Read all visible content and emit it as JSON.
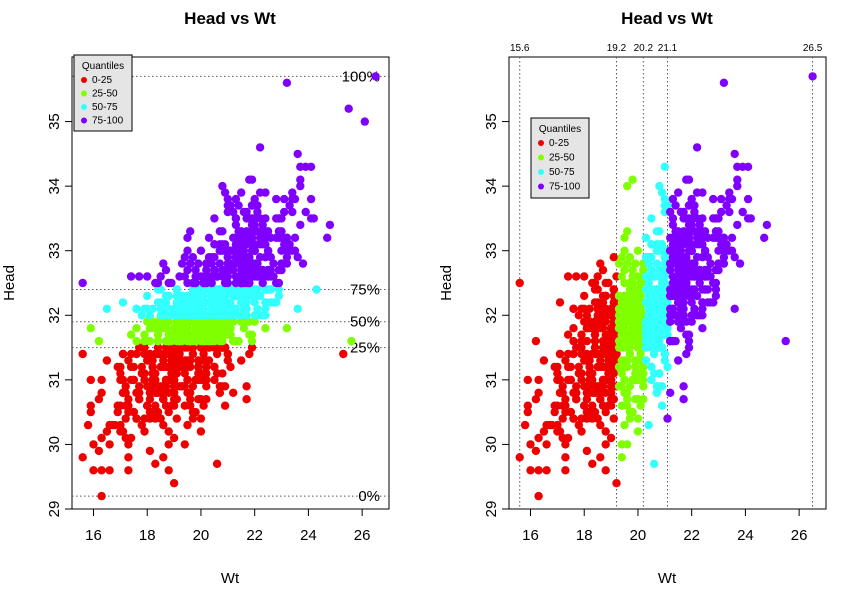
{
  "colors": {
    "q0_25": "#ee0000",
    "q25_50": "#80ff00",
    "q50_75": "#33ffff",
    "q75_100": "#7f00ff",
    "background": "#ffffff",
    "legend_bg": "#e5e5e5"
  },
  "chart_data": [
    {
      "type": "scatter",
      "title": "Head vs Wt",
      "xlabel": "Wt",
      "ylabel": "Head",
      "xlim": [
        15.2,
        27.0
      ],
      "ylim": [
        29.0,
        36.0
      ],
      "x_ticks": [
        "16",
        "18",
        "20",
        "22",
        "24",
        "26"
      ],
      "y_ticks": [
        "29",
        "30",
        "31",
        "32",
        "33",
        "34",
        "35"
      ],
      "legend": {
        "title": "Quantiles",
        "position": "top-left",
        "items": [
          "0-25",
          "25-50",
          "50-75",
          "75-100"
        ]
      },
      "quantile_axis": "Head",
      "quantile_lines": [
        {
          "label": "100%",
          "value": 35.7
        },
        {
          "label": "75%",
          "value": 32.4
        },
        {
          "label": "50%",
          "value": 31.9
        },
        {
          "label": "25%",
          "value": 31.5
        },
        {
          "label": "0%",
          "value": 29.2
        }
      ],
      "series": [
        {
          "name": "0-25",
          "color": "#ee0000",
          "y_range": [
            29.2,
            31.5
          ],
          "count": 250,
          "center": [
            19.0,
            30.9
          ],
          "extreme_points": [
            [
              16.3,
              29.2
            ],
            [
              19.0,
              29.4
            ],
            [
              20.6,
              29.7
            ],
            [
              25.3,
              31.4
            ],
            [
              15.6,
              31.4
            ]
          ]
        },
        {
          "name": "25-50",
          "color": "#80ff00",
          "y_range": [
            31.5,
            31.9
          ],
          "count": 250,
          "center": [
            19.8,
            31.7
          ],
          "extreme_points": [
            [
              25.6,
              31.6
            ],
            [
              23.2,
              31.8
            ],
            [
              15.9,
              31.8
            ]
          ]
        },
        {
          "name": "50-75",
          "color": "#33ffff",
          "y_range": [
            31.9,
            32.4
          ],
          "count": 250,
          "center": [
            20.2,
            32.15
          ],
          "extreme_points": [
            [
              24.3,
              32.4
            ],
            [
              16.5,
              32.1
            ]
          ]
        },
        {
          "name": "75-100",
          "color": "#7f00ff",
          "y_range": [
            32.4,
            35.7
          ],
          "count": 250,
          "center": [
            21.5,
            33.3
          ],
          "extreme_points": [
            [
              26.5,
              35.7
            ],
            [
              15.6,
              32.5
            ],
            [
              23.2,
              35.6
            ],
            [
              26.1,
              35.0
            ],
            [
              25.5,
              35.2
            ]
          ]
        }
      ]
    },
    {
      "type": "scatter",
      "title": "Head vs Wt",
      "xlabel": "Wt",
      "ylabel": "Head",
      "xlim": [
        15.2,
        27.0
      ],
      "ylim": [
        29.0,
        36.0
      ],
      "x_ticks": [
        "16",
        "18",
        "20",
        "22",
        "24",
        "26"
      ],
      "y_ticks": [
        "29",
        "30",
        "31",
        "32",
        "33",
        "34",
        "35"
      ],
      "legend": {
        "title": "Quantiles",
        "position": "top-left",
        "items": [
          "0-25",
          "25-50",
          "50-75",
          "75-100"
        ]
      },
      "quantile_axis": "Wt",
      "quantile_lines": [
        {
          "label": "15.6",
          "value": 15.6
        },
        {
          "label": "19.2",
          "value": 19.2
        },
        {
          "label": "20.2",
          "value": 20.2
        },
        {
          "label": "21.1",
          "value": 21.1
        },
        {
          "label": "26.5",
          "value": 26.5
        }
      ],
      "series": [
        {
          "name": "0-25",
          "color": "#ee0000",
          "x_range": [
            15.6,
            19.2
          ],
          "count": 250,
          "center": [
            17.8,
            31.3
          ],
          "extreme_points": [
            [
              15.6,
              32.5
            ],
            [
              16.3,
              29.2
            ],
            [
              19.2,
              29.4
            ],
            [
              19.1,
              32.9
            ]
          ]
        },
        {
          "name": "25-50",
          "color": "#80ff00",
          "x_range": [
            19.2,
            20.2
          ],
          "count": 250,
          "center": [
            19.7,
            31.6
          ],
          "extreme_points": [
            [
              19.8,
              34.1
            ],
            [
              19.6,
              34.0
            ],
            [
              19.4,
              29.8
            ],
            [
              19.6,
              30.0
            ]
          ]
        },
        {
          "name": "50-75",
          "color": "#33ffff",
          "x_range": [
            20.2,
            21.1
          ],
          "count": 250,
          "center": [
            20.6,
            31.8
          ],
          "extreme_points": [
            [
              20.6,
              29.7
            ],
            [
              21.0,
              34.3
            ],
            [
              20.4,
              30.3
            ]
          ]
        },
        {
          "name": "75-100",
          "color": "#7f00ff",
          "x_range": [
            21.1,
            26.5
          ],
          "count": 250,
          "center": [
            22.2,
            32.3
          ],
          "extreme_points": [
            [
              26.5,
              35.7
            ],
            [
              21.1,
              30.4
            ],
            [
              25.5,
              31.6
            ],
            [
              23.2,
              35.6
            ]
          ]
        }
      ]
    }
  ]
}
